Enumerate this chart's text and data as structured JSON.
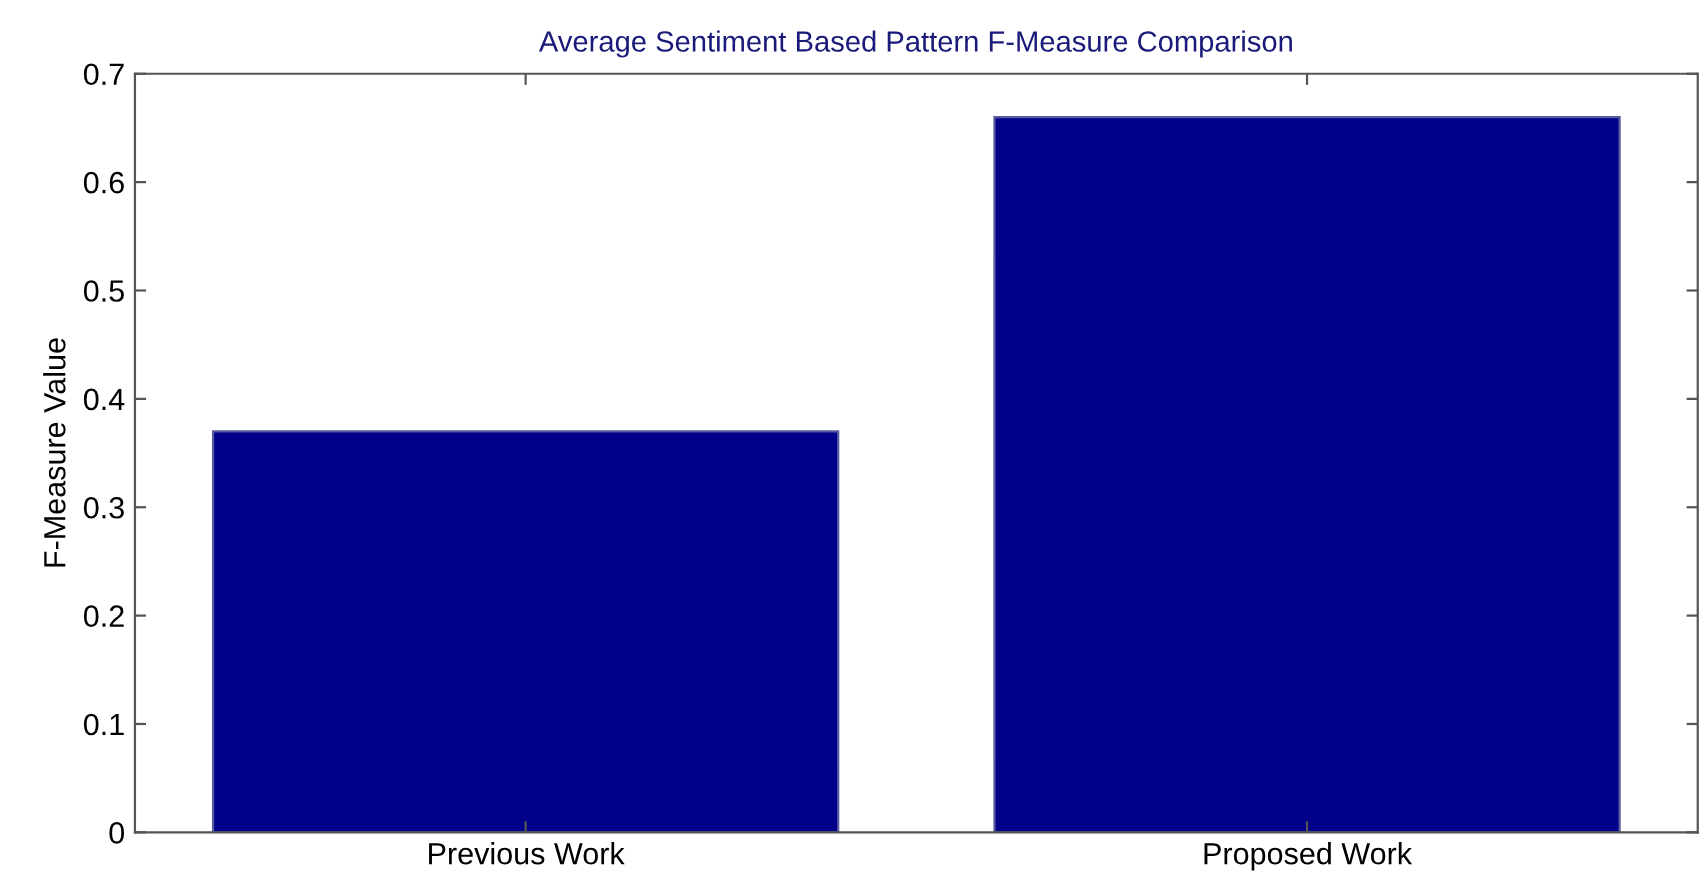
{
  "chart_data": {
    "type": "bar",
    "title": "Average Sentiment Based Pattern F-Measure Comparison",
    "ylabel": "F-Measure Value",
    "categories": [
      "Previous Work",
      "Proposed Work"
    ],
    "values": [
      0.37,
      0.66
    ],
    "color": "#00008b",
    "ylim": [
      0,
      0.7
    ],
    "yticks": [
      0,
      0.1,
      0.2,
      0.3,
      0.4,
      0.5,
      0.6,
      0.7
    ],
    "grid": false
  }
}
